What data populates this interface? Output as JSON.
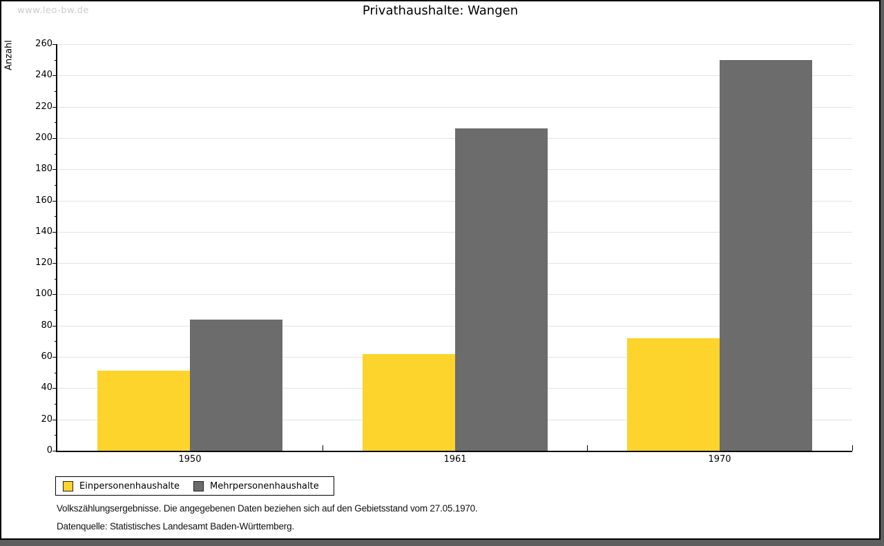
{
  "watermark": "www.leo-bw.de",
  "title": "Privathaushalte: Wangen",
  "chart_data": {
    "type": "bar",
    "title": "Privathaushalte: Wangen",
    "xlabel": "",
    "ylabel": "Anzahl",
    "categories": [
      "1950",
      "1961",
      "1970"
    ],
    "series": [
      {
        "name": "Einpersonenhaushalte",
        "color": "#fcd42b",
        "values": [
          51,
          62,
          72
        ]
      },
      {
        "name": "Mehrpersonenhaushalte",
        "color": "#6c6c6c",
        "values": [
          84,
          206,
          250
        ]
      }
    ],
    "ylim": [
      0,
      260
    ],
    "ytick_step": 20,
    "yminor_step": 10,
    "grid": true,
    "legend_position": "bottom-left"
  },
  "footer": {
    "line1": "Volkszählungsergebnisse. Die angegebenen Daten beziehen sich auf den Gebietsstand vom 27.05.1970.",
    "line2": "Datenquelle: Statistisches Landesamt Baden-Württemberg."
  },
  "colors": {
    "bar_yellow": "#fcd42b",
    "bar_gray": "#6c6c6c",
    "gridline": "#e3e3e3",
    "watermark": "#cccccc",
    "frame_background": "#5e5e5e",
    "panel_border": "#000000"
  }
}
